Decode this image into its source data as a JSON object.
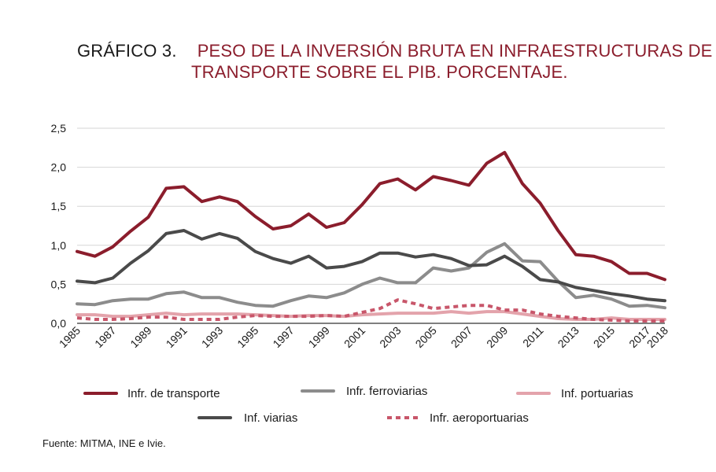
{
  "title": {
    "label": "GRÁFICO 3.",
    "line1": "PESO DE LA INVERSIÓN BRUTA EN INFRAESTRUCTURAS DE",
    "line2": "TRANSPORTE SOBRE EL PIB. PORCENTAJE."
  },
  "source": "Fuente: MITMA, INE e Ivie.",
  "chart_data": {
    "type": "line",
    "title": "PESO DE LA INVERSIÓN BRUTA EN INFRAESTRUCTURAS DE TRANSPORTE SOBRE EL PIB. PORCENTAJE.",
    "xlabel": "",
    "ylabel": "",
    "ylim": [
      0,
      2.5
    ],
    "yticks": [
      "0,0",
      "0,5",
      "1,0",
      "1,5",
      "2,0",
      "2,5"
    ],
    "xticks": [
      "1985",
      "1987",
      "1989",
      "1991",
      "1993",
      "1995",
      "1997",
      "1999",
      "2001",
      "2003",
      "2005",
      "2007",
      "2009",
      "2011",
      "2013",
      "2015",
      "2017",
      "2018"
    ],
    "grid": "horizontal",
    "legend_position": "bottom",
    "x": [
      1985,
      1986,
      1987,
      1988,
      1989,
      1990,
      1991,
      1992,
      1993,
      1994,
      1995,
      1996,
      1997,
      1998,
      1999,
      2000,
      2001,
      2002,
      2003,
      2004,
      2005,
      2006,
      2007,
      2008,
      2009,
      2010,
      2011,
      2012,
      2013,
      2014,
      2015,
      2016,
      2017,
      2018
    ],
    "series": [
      {
        "name": "Infr. de transporte",
        "color": "#8b1d2c",
        "dash": false,
        "values": [
          0.92,
          0.86,
          0.98,
          1.18,
          1.36,
          1.73,
          1.75,
          1.56,
          1.62,
          1.56,
          1.37,
          1.21,
          1.25,
          1.4,
          1.23,
          1.29,
          1.52,
          1.79,
          1.85,
          1.71,
          1.88,
          1.83,
          1.77,
          2.05,
          2.19,
          1.79,
          1.54,
          1.19,
          0.88,
          0.86,
          0.79,
          0.64,
          0.64,
          0.56
        ]
      },
      {
        "name": "Infr. ferroviarias",
        "color": "#8c8c8c",
        "dash": false,
        "values": [
          0.25,
          0.24,
          0.29,
          0.31,
          0.31,
          0.38,
          0.4,
          0.33,
          0.33,
          0.27,
          0.23,
          0.22,
          0.29,
          0.35,
          0.33,
          0.39,
          0.5,
          0.58,
          0.52,
          0.52,
          0.71,
          0.67,
          0.71,
          0.91,
          1.02,
          0.8,
          0.79,
          0.54,
          0.33,
          0.36,
          0.31,
          0.22,
          0.23,
          0.2
        ]
      },
      {
        "name": "Inf. portuarias",
        "color": "#e3a3ab",
        "dash": false,
        "values": [
          0.11,
          0.11,
          0.09,
          0.09,
          0.11,
          0.13,
          0.11,
          0.12,
          0.12,
          0.12,
          0.11,
          0.1,
          0.09,
          0.1,
          0.1,
          0.09,
          0.11,
          0.12,
          0.13,
          0.13,
          0.13,
          0.15,
          0.13,
          0.15,
          0.15,
          0.12,
          0.09,
          0.06,
          0.05,
          0.05,
          0.07,
          0.05,
          0.05,
          0.05
        ]
      },
      {
        "name": "Inf. viarias",
        "color": "#4a4a4a",
        "dash": false,
        "values": [
          0.54,
          0.52,
          0.58,
          0.77,
          0.93,
          1.15,
          1.19,
          1.08,
          1.15,
          1.09,
          0.92,
          0.83,
          0.77,
          0.86,
          0.71,
          0.73,
          0.79,
          0.9,
          0.9,
          0.85,
          0.88,
          0.83,
          0.74,
          0.75,
          0.86,
          0.73,
          0.56,
          0.53,
          0.46,
          0.42,
          0.38,
          0.35,
          0.31,
          0.29
        ]
      },
      {
        "name": "Infr. aeroportuarias",
        "color": "#c8566a",
        "dash": true,
        "values": [
          0.07,
          0.05,
          0.05,
          0.06,
          0.08,
          0.08,
          0.05,
          0.05,
          0.05,
          0.08,
          0.1,
          0.09,
          0.09,
          0.09,
          0.1,
          0.09,
          0.14,
          0.19,
          0.3,
          0.25,
          0.19,
          0.21,
          0.23,
          0.23,
          0.17,
          0.17,
          0.12,
          0.09,
          0.07,
          0.05,
          0.04,
          0.03,
          0.03,
          0.03
        ]
      }
    ]
  }
}
